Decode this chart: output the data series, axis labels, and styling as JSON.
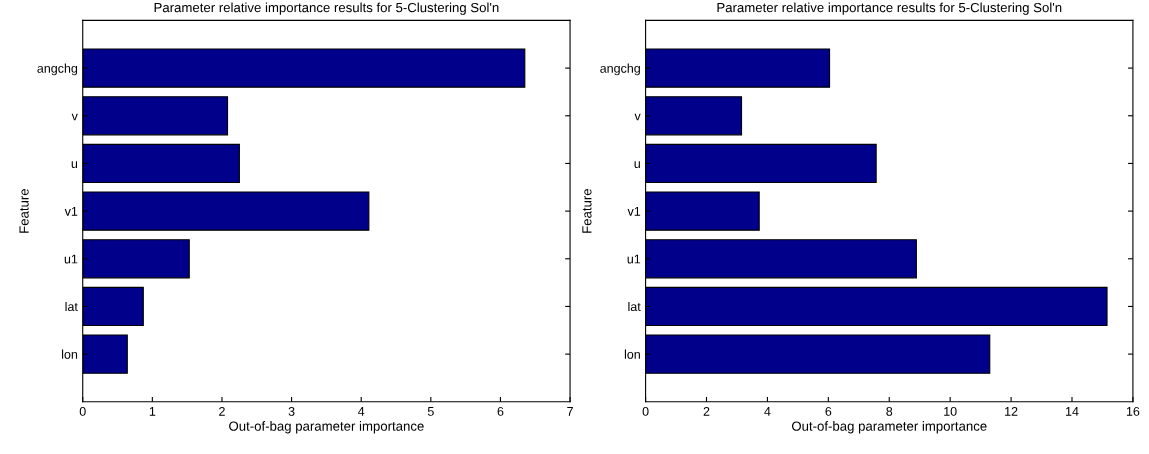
{
  "chart_data": [
    {
      "type": "bar",
      "orientation": "horizontal",
      "title": "Parameter relative importance results for 5-Clustering Sol'n",
      "xlabel": "Out-of-bag parameter importance",
      "ylabel": "Feature",
      "categories": [
        "angchg",
        "v",
        "u",
        "v1",
        "u1",
        "lat",
        "lon"
      ],
      "values": [
        6.35,
        2.08,
        2.25,
        4.11,
        1.53,
        0.87,
        0.64
      ],
      "color": "#00008b",
      "xlim": [
        0,
        7
      ],
      "xticks": [
        0,
        1,
        2,
        3,
        4,
        5,
        6,
        7
      ],
      "grid": false
    },
    {
      "type": "bar",
      "orientation": "horizontal",
      "title": "Parameter relative importance results for 5-Clustering Sol'n",
      "xlabel": "Out-of-bag parameter importance",
      "ylabel": "Feature",
      "categories": [
        "angchg",
        "v",
        "u",
        "v1",
        "u1",
        "lat",
        "lon"
      ],
      "values": [
        6.04,
        3.15,
        7.57,
        3.73,
        8.89,
        15.15,
        11.3
      ],
      "color": "#00008b",
      "xlim": [
        0,
        16
      ],
      "xticks": [
        0,
        2,
        4,
        6,
        8,
        10,
        12,
        14,
        16
      ],
      "grid": false
    }
  ]
}
